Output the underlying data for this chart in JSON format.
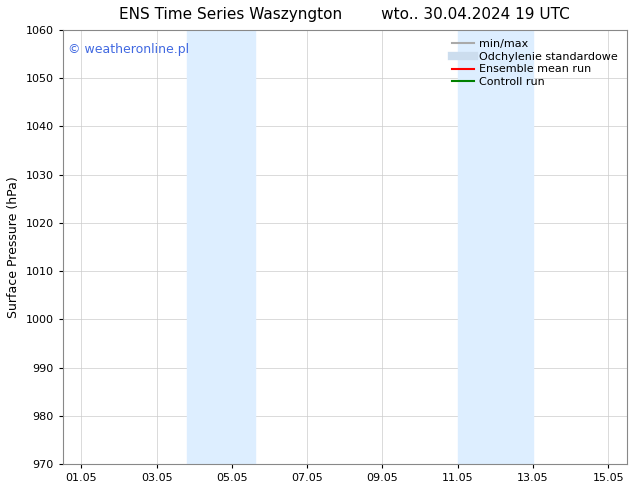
{
  "title": "ENS Time Series Waszyngton        wto.. 30.04.2024 19 UTC",
  "ylabel": "Surface Pressure (hPa)",
  "ylim": [
    970,
    1060
  ],
  "yticks": [
    970,
    980,
    990,
    1000,
    1010,
    1020,
    1030,
    1040,
    1050,
    1060
  ],
  "xlim_start": 0.5,
  "xlim_end": 15.5,
  "xtick_positions": [
    1,
    3,
    5,
    7,
    9,
    11,
    13,
    15
  ],
  "xtick_labels": [
    "01.05",
    "03.05",
    "05.05",
    "07.05",
    "09.05",
    "11.05",
    "13.05",
    "15.05"
  ],
  "shaded_bands": [
    {
      "x_start": 3.8,
      "x_end": 5.6
    },
    {
      "x_start": 11.0,
      "x_end": 13.0
    }
  ],
  "shaded_color": "#ddeeff",
  "watermark_text": "© weatheronline.pl",
  "watermark_color": "#4169e1",
  "background_color": "#ffffff",
  "plot_bg_color": "#ffffff",
  "legend_items": [
    {
      "label": "min/max",
      "color": "#aaaaaa",
      "lw": 1.5
    },
    {
      "label": "Odchylenie standardowe",
      "color": "#ccddee",
      "lw": 6
    },
    {
      "label": "Ensemble mean run",
      "color": "#ff0000",
      "lw": 1.5
    },
    {
      "label": "Controll run",
      "color": "#008000",
      "lw": 1.5
    }
  ],
  "title_fontsize": 11,
  "axis_label_fontsize": 9,
  "tick_fontsize": 8,
  "legend_fontsize": 8,
  "watermark_fontsize": 9
}
